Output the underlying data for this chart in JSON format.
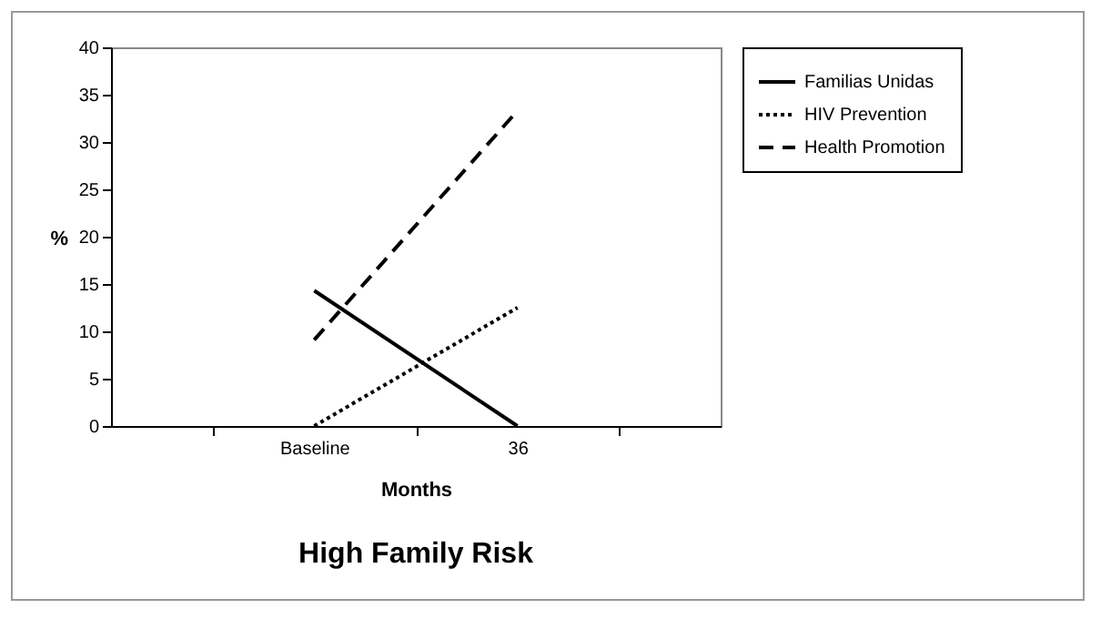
{
  "chart_data": {
    "type": "line",
    "title": "High Family Risk",
    "xlabel": "Months",
    "ylabel": "%",
    "categories": [
      "Baseline",
      "36"
    ],
    "series": [
      {
        "name": "Familias Unidas",
        "color": "#000000",
        "line_style": "solid",
        "values": [
          14.3,
          0
        ]
      },
      {
        "name": "HIV Prevention",
        "color": "#000000",
        "line_style": "dotted",
        "values": [
          0,
          12.5
        ]
      },
      {
        "name": "Health Promotion",
        "color": "#000000",
        "line_style": "dashed",
        "values": [
          9.1,
          33.3
        ]
      }
    ],
    "ylim": [
      0,
      40
    ],
    "yticks": [
      0,
      5,
      10,
      15,
      20,
      25,
      30,
      35,
      40
    ],
    "grid": false,
    "legend": "right",
    "marker": "none"
  }
}
